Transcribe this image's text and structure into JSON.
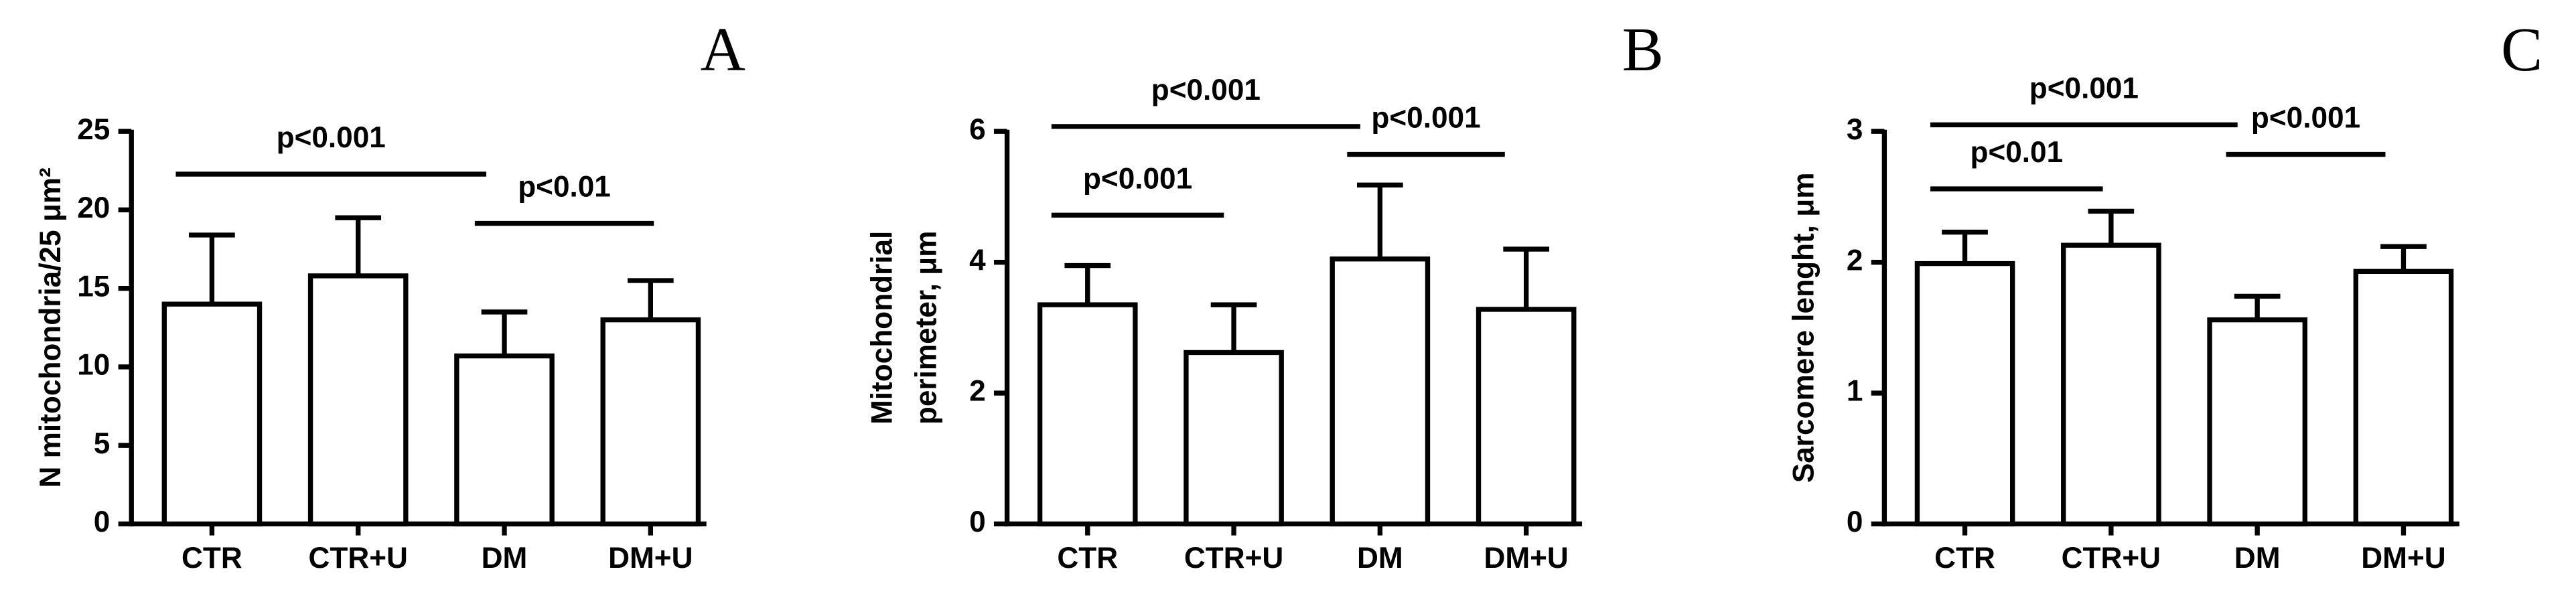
{
  "chart_data": [
    {
      "type": "bar",
      "title": "A",
      "y_label": "N mitochondria/25 μm²",
      "categories": [
        "CTR",
        "CTR+U",
        "DM",
        "DM+U"
      ],
      "values": [
        14,
        15.8,
        10.7,
        13
      ],
      "errors": [
        4.4,
        3.7,
        2.8,
        2.5
      ],
      "color": "#ffffff",
      "ylim": [
        0,
        25
      ],
      "yticks": [
        0,
        5,
        10,
        15,
        20,
        25
      ],
      "annotations": [
        "p<0.001",
        "p<0.01"
      ]
    },
    {
      "type": "bar",
      "title": "B",
      "y_label": [
        "Mitochondrial",
        "perimeter, μm"
      ],
      "categories": [
        "CTR",
        "CTR+U",
        "DM",
        "DM+U"
      ],
      "values": [
        3.35,
        2.62,
        4.05,
        3.28
      ],
      "errors": [
        0.6,
        0.73,
        1.13,
        0.92
      ],
      "color": "#ffffff",
      "ylim": [
        0,
        6
      ],
      "yticks": [
        0,
        2,
        4,
        6
      ],
      "annotations": [
        "p<0.001",
        "p<0.001",
        "p<0.001"
      ]
    },
    {
      "type": "bar",
      "title": "C",
      "y_label": "Sarcomere lenght, μm",
      "categories": [
        "CTR",
        "CTR+U",
        "DM",
        "DM+U"
      ],
      "values": [
        1.99,
        2.13,
        1.56,
        1.93
      ],
      "errors": [
        0.24,
        0.26,
        0.18,
        0.19
      ],
      "color": "#ffffff",
      "ylim": [
        0,
        3
      ],
      "yticks": [
        0,
        1,
        2,
        3
      ],
      "annotations": [
        "p<0.001",
        "p<0.01",
        "p<0.001"
      ]
    }
  ]
}
